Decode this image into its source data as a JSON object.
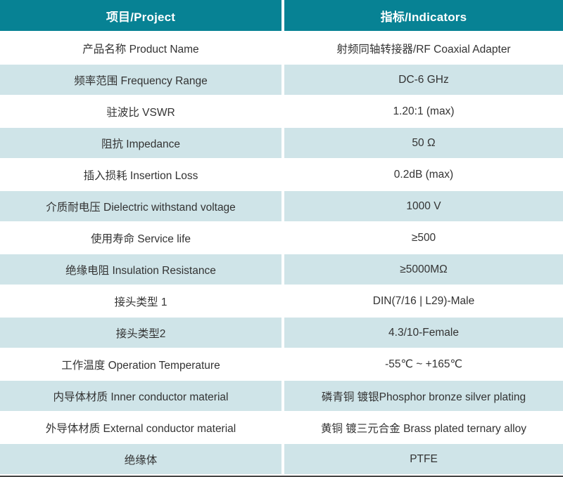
{
  "colors": {
    "header_bg": "#078294",
    "header_text": "#ffffff",
    "row_bg": "#ffffff",
    "row_alt_bg": "#cfe4e8",
    "text": "#333333",
    "bottom_line": "#454545"
  },
  "table": {
    "header": {
      "project": "项目/Project",
      "indicators": "指标/Indicators"
    },
    "rows": [
      {
        "project": "产品名称 Product Name",
        "indicator": "射频同轴转接器/RF Coaxial Adapter"
      },
      {
        "project": "频率范围 Frequency Range",
        "indicator": "DC-6 GHz"
      },
      {
        "project": "驻波比 VSWR",
        "indicator": "1.20:1 (max)"
      },
      {
        "project": "阻抗 Impedance",
        "indicator": "50 Ω"
      },
      {
        "project": "插入损耗 Insertion Loss",
        "indicator": "0.2dB (max)"
      },
      {
        "project": "介质耐电压 Dielectric withstand voltage",
        "indicator": "1000 V"
      },
      {
        "project": "使用寿命 Service life",
        "indicator": "≥500"
      },
      {
        "project": "绝缘电阻 Insulation Resistance",
        "indicator": "≥5000MΩ"
      },
      {
        "project": "接头类型 1",
        "indicator": "DIN(7/16 | L29)-Male"
      },
      {
        "project": "接头类型2",
        "indicator": "4.3/10-Female"
      },
      {
        "project": "工作温度 Operation Temperature",
        "indicator": "-55℃ ~ +165℃"
      },
      {
        "project": "内导体材质 Inner conductor material",
        "indicator": "磷青铜 镀银Phosphor bronze silver plating"
      },
      {
        "project": "外导体材质 External conductor material",
        "indicator": "黄铜 镀三元合金 Brass plated ternary alloy"
      },
      {
        "project": "绝缘体",
        "indicator": "PTFE"
      }
    ]
  }
}
